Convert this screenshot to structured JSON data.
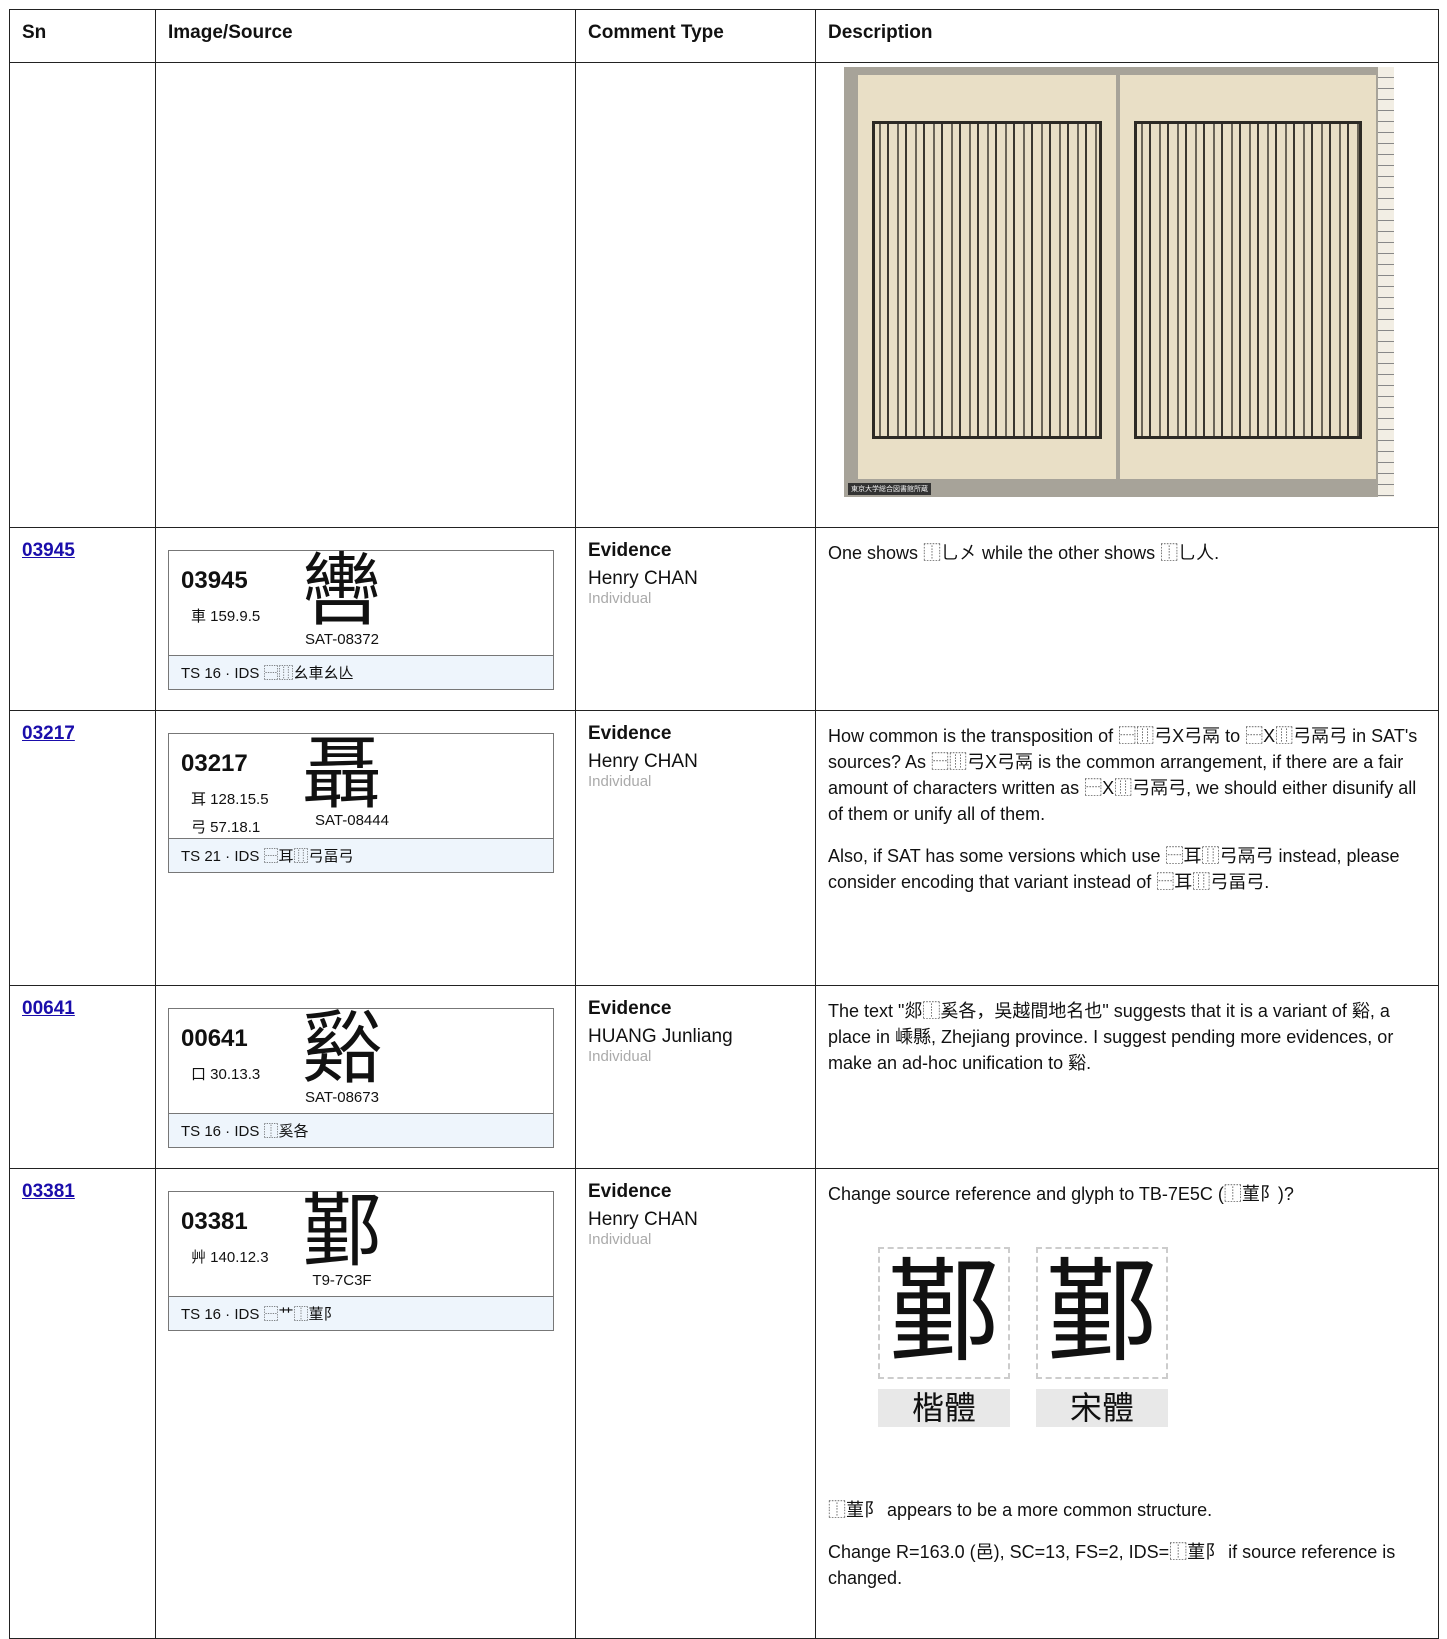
{
  "header": {
    "columns": [
      "Sn",
      "Image/Source",
      "Comment Type",
      "Description"
    ]
  },
  "rows": [
    {
      "description": {
        "image_caption": "東京大学総合図書館所蔵"
      }
    },
    {
      "sn": "03945",
      "card": {
        "number": "03945",
        "glyph": "轡",
        "radicals": [
          "車 159.9.5"
        ],
        "source": "SAT-08372",
        "footer": "TS 16 · IDS ⿱⿲幺車幺亾"
      },
      "comment": {
        "type": "Evidence",
        "author": "Henry CHAN",
        "role": "Individual"
      },
      "description": [
        {
          "text": "One shows ⿰乚㐅 while the other shows ⿰乚人."
        }
      ]
    },
    {
      "sn": "03217",
      "card": {
        "number": "03217",
        "glyph": "聶",
        "radicals": [
          "耳 128.15.5",
          "弓 57.18.1"
        ],
        "source": "SAT-08444",
        "footer": "TS 21 · IDS ⿱耳⿲弓畐弓"
      },
      "comment": {
        "type": "Evidence",
        "author": "Henry CHAN",
        "role": "Individual"
      },
      "description": [
        {
          "text": "How common is the transposition of ⿱⿲弓X弓鬲 to ⿱X⿲弓鬲弓 in SAT's sources? As ⿱⿲弓X弓鬲 is the common arrangement, if there are a fair amount of characters written as ⿱X⿲弓鬲弓, we should either disunify all of them or unify all of them."
        },
        {
          "text": "Also, if SAT has some versions which use ⿱耳⿲弓鬲弓 instead, please consider encoding that variant instead of ⿱耳⿲弓畐弓."
        }
      ]
    },
    {
      "sn": "00641",
      "card": {
        "number": "00641",
        "glyph": "谿",
        "radicals": [
          "口 30.13.3"
        ],
        "source": "SAT-08673",
        "footer": "TS 16 · IDS ⿰奚各"
      },
      "comment": {
        "type": "Evidence",
        "author": "HUANG Junliang",
        "role": "Individual"
      },
      "description": [
        {
          "text": "The text \"郯⿰奚各，吳越間地名也\" suggests that it is a variant of 谿, a place in 嵊縣, Zhejiang province. I suggest pending more evidences, or make an ad-hoc unification to 谿."
        }
      ]
    },
    {
      "sn": "03381",
      "card": {
        "number": "03381",
        "glyph": "鄞",
        "radicals": [
          "艸 140.12.3"
        ],
        "source": "T9-7C3F",
        "footer": "TS 16 · IDS ⿱艹⿰菫阝"
      },
      "comment": {
        "type": "Evidence",
        "author": "Henry CHAN",
        "role": "Individual"
      },
      "description": [
        {
          "text": "Change source reference and glyph to TB-7E5C (⿰菫阝)?"
        },
        {
          "figure": [
            {
              "glyph": "鄞",
              "label": "楷體"
            },
            {
              "glyph": "鄞",
              "label": "宋體"
            }
          ]
        },
        {
          "text": "⿰菫阝 appears to be a more common structure."
        },
        {
          "text": "Change R=163.0 (邑), SC=13, FS=2, IDS=⿰菫阝 if source reference is changed."
        }
      ]
    }
  ]
}
